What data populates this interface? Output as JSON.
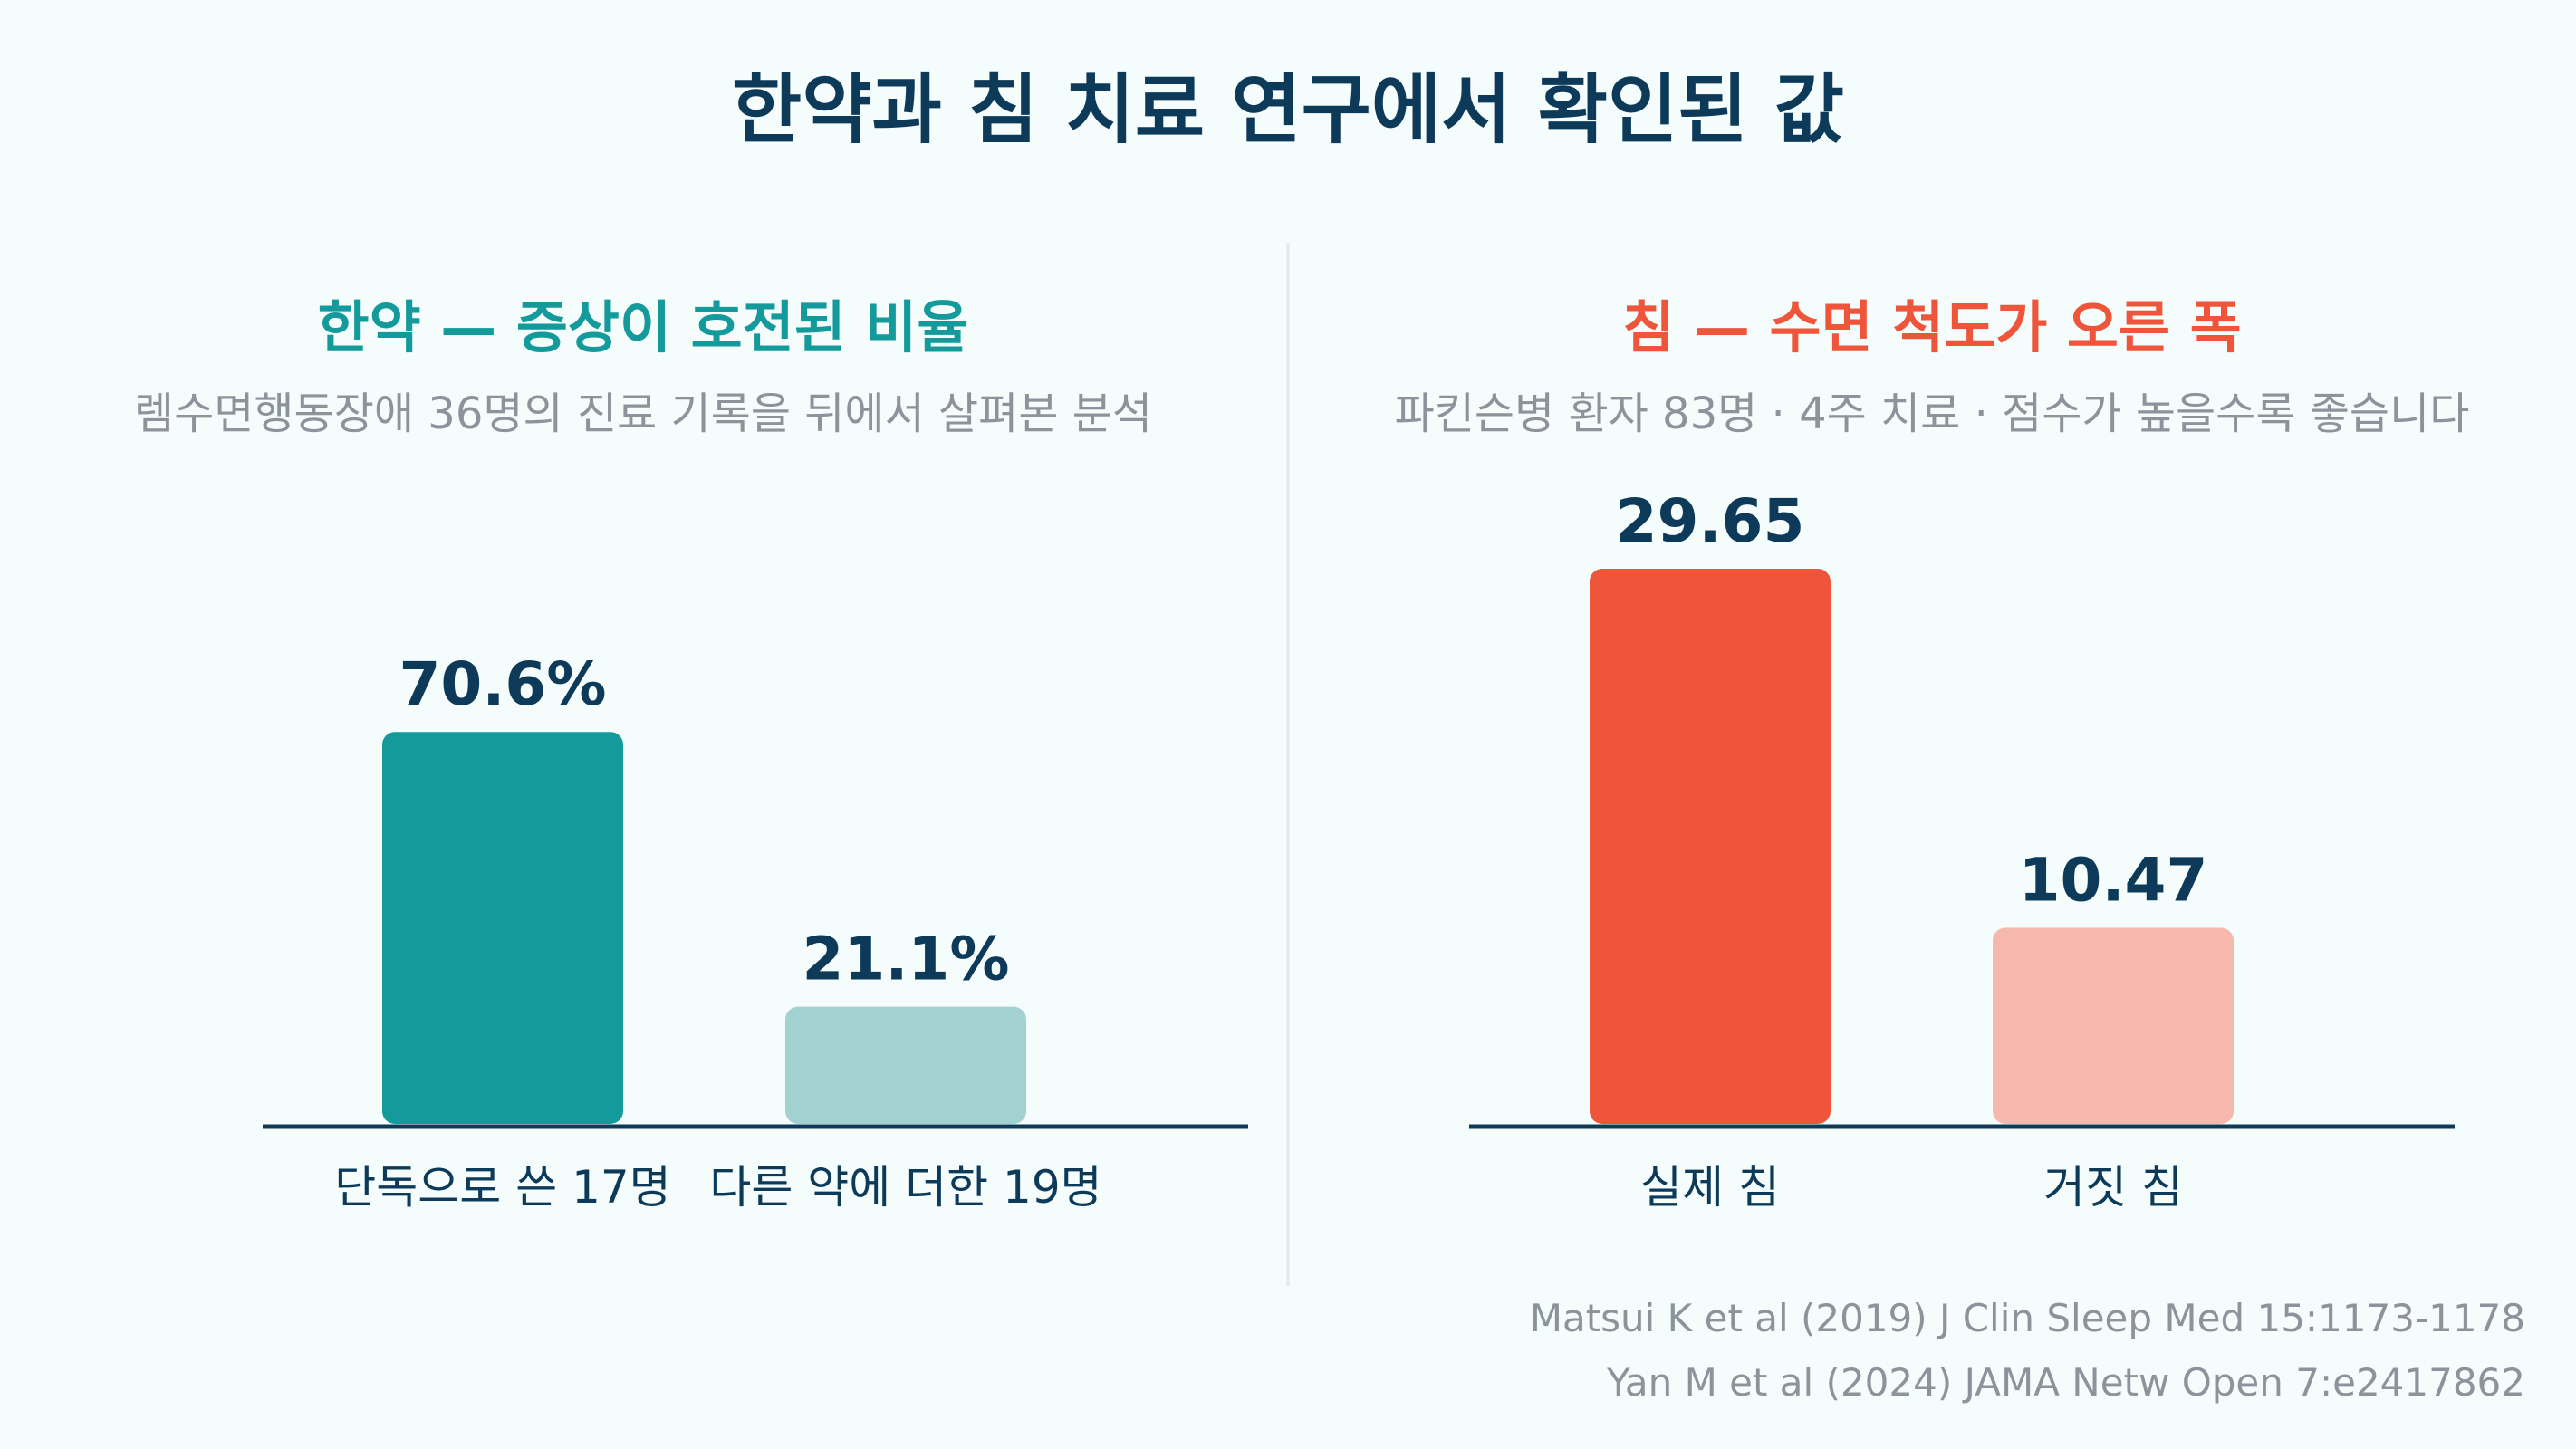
{
  "title": "한약과 침 치료 연구에서 확인된 값",
  "colors": {
    "background": "#f5fcfc",
    "title": "#0e3a5a",
    "muted": "#8c939b",
    "divider": "#e3e8ea",
    "herbal_accent": "#149a9a",
    "acupuncture_accent": "#ef553b"
  },
  "chart_data": [
    {
      "type": "bar",
      "title": "한약 — 증상이 호전된 비율",
      "subtitle": "렘수면행동장애 36명의 진료 기록을 뒤에서 살펴본 분석",
      "categories": [
        "단독으로 쓴 17명",
        "다른 약에 더한 19명"
      ],
      "values": [
        70.6,
        21.1
      ],
      "value_labels": [
        "70.6%",
        "21.1%"
      ],
      "bar_colors": [
        "#149a9a",
        "#a3d1d1"
      ],
      "title_color": "#149a9a",
      "ylim": [
        0,
        100
      ],
      "grid": false,
      "legend": "none"
    },
    {
      "type": "bar",
      "title": "침 — 수면 척도가 오른 폭",
      "subtitle": "파킨슨병 환자 83명 · 4주 치료 · 점수가 높을수록 좋습니다",
      "categories": [
        "실제 침",
        "거짓 침"
      ],
      "values": [
        29.65,
        10.47
      ],
      "value_labels": [
        "29.65",
        "10.47"
      ],
      "bar_colors": [
        "#ef553b",
        "#f6b8ac"
      ],
      "title_color": "#ef553b",
      "ylim": [
        0,
        29.65
      ],
      "grid": false,
      "legend": "none"
    }
  ],
  "citations": [
    "Matsui K et al (2019) J Clin Sleep Med 15:1173-1178",
    "Yan M et al (2024) JAMA Netw Open 7:e2417862"
  ]
}
